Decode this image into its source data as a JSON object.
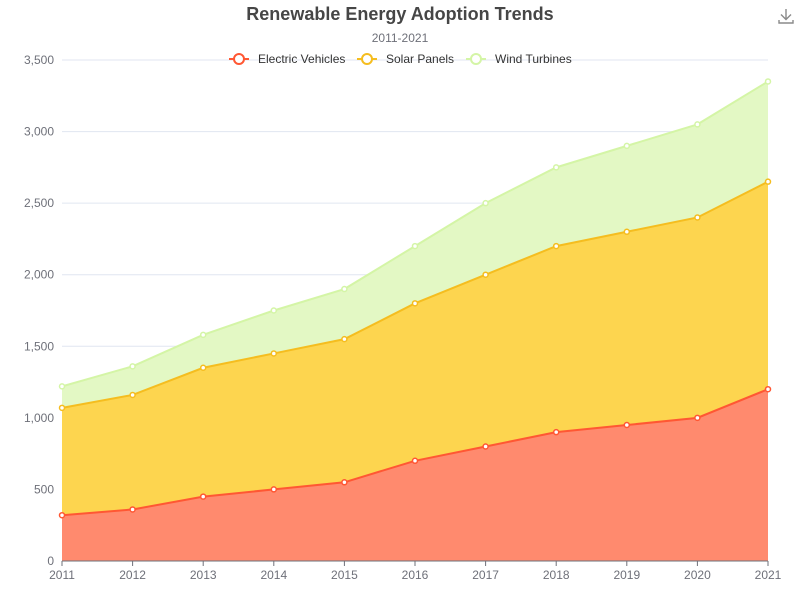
{
  "chart_data": {
    "type": "area",
    "stacked": true,
    "title": "Renewable Energy Adoption Trends",
    "subtitle": "2011-2021",
    "x": [
      "2011",
      "2012",
      "2013",
      "2014",
      "2015",
      "2016",
      "2017",
      "2018",
      "2019",
      "2020",
      "2021"
    ],
    "ylim": [
      0,
      3500
    ],
    "yticks": [
      0,
      500,
      1000,
      1500,
      2000,
      2500,
      3000,
      3500
    ],
    "ytick_labels": [
      "0",
      "500",
      "1,000",
      "1,500",
      "2,000",
      "2,500",
      "3,000",
      "3,500"
    ],
    "grid": true,
    "legend_position": "top-center",
    "series": [
      {
        "name": "Electric Vehicles",
        "color": "#ff5733",
        "fill": "#ff8a6e",
        "values": [
          320,
          360,
          450,
          500,
          550,
          700,
          800,
          900,
          950,
          1000,
          1200
        ]
      },
      {
        "name": "Solar Panels",
        "color": "#f5bd1f",
        "fill": "#fdd54f",
        "values": [
          750,
          800,
          900,
          950,
          1000,
          1100,
          1200,
          1300,
          1350,
          1400,
          1450
        ]
      },
      {
        "name": "Wind Turbines",
        "color": "#d4f5a6",
        "fill": "#e3f8c4",
        "values": [
          150,
          200,
          230,
          300,
          350,
          400,
          500,
          550,
          600,
          650,
          700
        ]
      }
    ]
  },
  "toolbar": {
    "download_icon": "download-icon"
  }
}
